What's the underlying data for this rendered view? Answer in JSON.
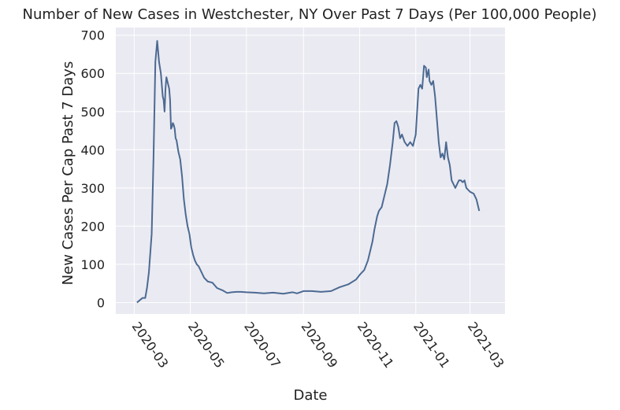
{
  "chart_data": {
    "type": "line",
    "title": "Number of New Cases in Westchester, NY Over Past 7 Days (Per 100,000 People)",
    "xlabel": "Date",
    "ylabel": "New Cases Per Cap Past 7 Days",
    "xlim": [
      "2020-02-10",
      "2021-04-08"
    ],
    "ylim": [
      -30,
      720
    ],
    "x_ticks": [
      "2020-03",
      "2020-05",
      "2020-07",
      "2020-09",
      "2020-11",
      "2021-01",
      "2021-03"
    ],
    "y_ticks": [
      0,
      100,
      200,
      300,
      400,
      500,
      600,
      700
    ],
    "grid": true,
    "background": "#eaeaf2",
    "line_color": "#4c6a92",
    "series": [
      {
        "x": [
          "2020-03-04",
          "2020-03-08",
          "2020-03-10",
          "2020-03-13",
          "2020-03-15",
          "2020-03-17",
          "2020-03-20",
          "2020-03-22",
          "2020-03-24",
          "2020-03-26",
          "2020-03-28",
          "2020-03-30",
          "2020-04-01",
          "2020-04-02",
          "2020-04-03",
          "2020-04-04",
          "2020-04-05",
          "2020-04-06",
          "2020-04-07",
          "2020-04-08",
          "2020-04-09",
          "2020-04-10",
          "2020-04-11",
          "2020-04-12",
          "2020-04-13",
          "2020-04-14",
          "2020-04-15",
          "2020-04-16",
          "2020-04-18",
          "2020-04-20",
          "2020-04-22",
          "2020-04-24",
          "2020-04-25",
          "2020-04-26",
          "2020-04-28",
          "2020-04-30",
          "2020-05-02",
          "2020-05-04",
          "2020-05-06",
          "2020-05-08",
          "2020-05-10",
          "2020-05-13",
          "2020-05-16",
          "2020-05-20",
          "2020-05-25",
          "2020-05-30",
          "2020-06-05",
          "2020-06-10",
          "2020-06-15",
          "2020-06-20",
          "2020-06-25",
          "2020-07-01",
          "2020-07-10",
          "2020-07-20",
          "2020-07-30",
          "2020-08-10",
          "2020-08-20",
          "2020-08-25",
          "2020-09-01",
          "2020-09-10",
          "2020-09-20",
          "2020-10-01",
          "2020-10-10",
          "2020-10-20",
          "2020-10-28",
          "2020-11-02",
          "2020-11-06",
          "2020-11-10",
          "2020-11-12",
          "2020-11-15",
          "2020-11-17",
          "2020-11-20",
          "2020-11-22",
          "2020-11-25",
          "2020-11-28",
          "2020-12-01",
          "2020-12-04",
          "2020-12-07",
          "2020-12-09",
          "2020-12-11",
          "2020-12-13",
          "2020-12-15",
          "2020-12-17",
          "2020-12-20",
          "2020-12-23",
          "2020-12-26",
          "2020-12-29",
          "2021-01-01",
          "2021-01-04",
          "2021-01-06",
          "2021-01-08",
          "2021-01-10",
          "2021-01-12",
          "2021-01-13",
          "2021-01-15",
          "2021-01-16",
          "2021-01-18",
          "2021-01-20",
          "2021-01-22",
          "2021-01-24",
          "2021-01-26",
          "2021-01-28",
          "2021-01-30",
          "2021-02-01",
          "2021-02-03",
          "2021-02-05",
          "2021-02-07",
          "2021-02-09",
          "2021-02-11",
          "2021-02-13",
          "2021-02-15",
          "2021-02-17",
          "2021-02-19",
          "2021-02-21",
          "2021-02-23",
          "2021-02-25",
          "2021-03-01",
          "2021-03-05",
          "2021-03-08",
          "2021-03-10",
          "2021-03-11"
        ],
        "values": [
          0,
          8,
          12,
          12,
          40,
          80,
          180,
          380,
          630,
          685,
          630,
          600,
          540,
          530,
          500,
          560,
          590,
          580,
          570,
          560,
          530,
          455,
          460,
          470,
          465,
          455,
          430,
          425,
          395,
          375,
          330,
          270,
          250,
          230,
          200,
          180,
          145,
          125,
          110,
          100,
          95,
          80,
          65,
          55,
          52,
          38,
          32,
          25,
          27,
          28,
          28,
          27,
          26,
          24,
          26,
          23,
          27,
          24,
          30,
          30,
          28,
          30,
          40,
          48,
          60,
          75,
          85,
          110,
          130,
          160,
          190,
          225,
          240,
          250,
          280,
          310,
          360,
          420,
          470,
          475,
          460,
          430,
          440,
          420,
          410,
          420,
          410,
          440,
          560,
          570,
          560,
          620,
          615,
          590,
          610,
          580,
          570,
          580,
          540,
          480,
          420,
          380,
          390,
          375,
          420,
          380,
          360,
          320,
          310,
          300,
          310,
          320,
          320,
          315,
          320,
          300,
          290,
          285,
          270,
          250,
          240
        ]
      }
    ]
  }
}
